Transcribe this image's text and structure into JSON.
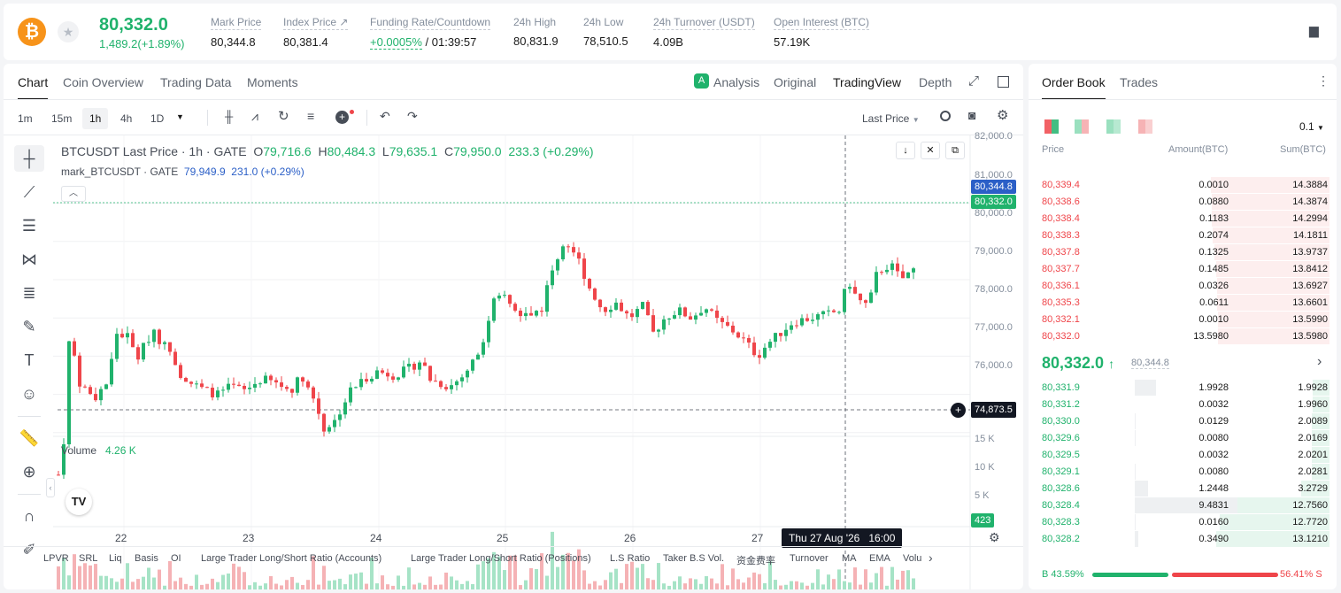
{
  "header": {
    "coin_symbol": "₿",
    "last_price": "80,332.0",
    "change": "1,489.2(+1.89%)",
    "stats": [
      {
        "label": "Mark Price",
        "value": "80,344.8"
      },
      {
        "label": "Index Price ↗",
        "value": "80,381.4"
      },
      {
        "label": "Funding Rate/Countdown",
        "value1": "+0.0005%",
        "value2": " / 01:39:57"
      },
      {
        "label": "24h High",
        "value": "80,831.9"
      },
      {
        "label": "24h Low",
        "value": "78,510.5"
      },
      {
        "label": "24h Turnover (USDT)",
        "value": "4.09B"
      },
      {
        "label": "Open Interest (BTC)",
        "value": "57.19K"
      }
    ]
  },
  "chart_tabs": [
    "Chart",
    "Coin Overview",
    "Trading Data",
    "Moments"
  ],
  "view_tabs": [
    "Analysis",
    "Original",
    "TradingView",
    "Depth"
  ],
  "intervals": [
    "1m",
    "15m",
    "1h",
    "4h",
    "1D"
  ],
  "price_type": "Last Price",
  "legend": {
    "line1_a": "BTCUSDT Last Price · 1h · GATE",
    "o": "O",
    "o_v": "79,716.6",
    "h": "H",
    "h_v": "80,484.3",
    "l": "L",
    "l_v": "79,635.1",
    "c": "C",
    "c_v": "79,950.0",
    "chg": "233.3 (+0.29%)",
    "line2_a": "mark_BTCUSDT · GATE",
    "line2_v": "79,949.9",
    "line2_c": "231.0 (+0.29%)"
  },
  "volume_legend": {
    "label": "Volume",
    "value": "4.26 K"
  },
  "price_axis": [
    "82,000.0",
    "81,000.0",
    "80,000.0",
    "79,000.0",
    "78,000.0",
    "77,000.0",
    "76,000.0"
  ],
  "vol_axis": [
    "15 K",
    "10 K",
    "5 K"
  ],
  "badges": {
    "mark": "80,344.8",
    "last": "80,332.0",
    "cross": "74,873.5",
    "vol": "423",
    "time": "Thu 27 Aug '26   16:00"
  },
  "date_labels": [
    "22",
    "23",
    "24",
    "25",
    "26",
    "27"
  ],
  "indicators": [
    "LPVR",
    "SRL",
    "Liq",
    "Basis",
    "OI",
    "Large Trader Long/Short Ratio (Accounts)",
    "Large Trader Long/Short Ratio (Positions)",
    "L.S Ratio",
    "Taker B.S Vol.",
    "资金费率",
    "Turnover",
    "MA",
    "EMA",
    "Volu"
  ],
  "orderbook": {
    "tabs": [
      "Order Book",
      "Trades"
    ],
    "precision": "0.1",
    "headers": [
      "Price",
      "Amount(BTC)",
      "Sum(BTC)"
    ],
    "asks": [
      [
        "80,339.4",
        "0.0010",
        "14.3884"
      ],
      [
        "80,338.6",
        "0.0880",
        "14.3874"
      ],
      [
        "80,338.4",
        "0.1183",
        "14.2994"
      ],
      [
        "80,338.3",
        "0.2074",
        "14.1811"
      ],
      [
        "80,337.8",
        "0.1325",
        "13.9737"
      ],
      [
        "80,337.7",
        "0.1485",
        "13.8412"
      ],
      [
        "80,336.1",
        "0.0326",
        "13.6927"
      ],
      [
        "80,335.3",
        "0.0611",
        "13.6601"
      ],
      [
        "80,332.1",
        "0.0010",
        "13.5990"
      ],
      [
        "80,332.0",
        "13.5980",
        "13.5980"
      ]
    ],
    "mid_price": "80,332.0",
    "mid_arrow": "↑",
    "mid_mark": "80,344.8",
    "bids": [
      [
        "80,331.9",
        "1.9928",
        "1.9928"
      ],
      [
        "80,331.2",
        "0.0032",
        "1.9960"
      ],
      [
        "80,330.0",
        "0.0129",
        "2.0089"
      ],
      [
        "80,329.6",
        "0.0080",
        "2.0169"
      ],
      [
        "80,329.5",
        "0.0032",
        "2.0201"
      ],
      [
        "80,329.1",
        "0.0080",
        "2.0281"
      ],
      [
        "80,328.6",
        "1.2448",
        "3.2729"
      ],
      [
        "80,328.4",
        "9.4831",
        "12.7560"
      ],
      [
        "80,328.3",
        "0.0160",
        "12.7720"
      ],
      [
        "80,328.2",
        "0.3490",
        "13.1210"
      ]
    ],
    "buy_label": "B",
    "buy_pct": "43.59%",
    "sell_pct": "56.41%",
    "sell_label": "S"
  },
  "colors": {
    "up": "#20b26c",
    "down": "#ef454a",
    "accent": "#f7931a"
  }
}
